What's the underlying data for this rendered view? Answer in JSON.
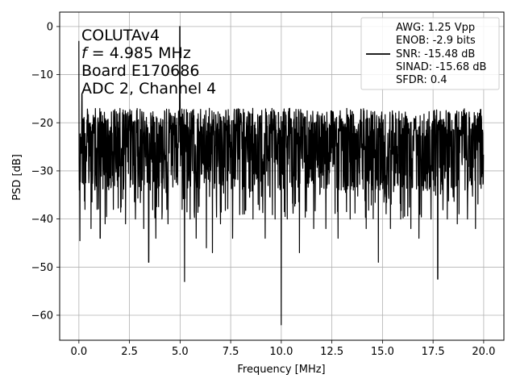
{
  "chart_data": {
    "type": "line",
    "title": "",
    "xlabel": "Frequency [MHz]",
    "ylabel": "PSD [dB]",
    "xlim": [
      -0.95,
      21.0
    ],
    "ylim": [
      -65.2,
      3.0
    ],
    "xticks": [
      0.0,
      2.5,
      5.0,
      7.5,
      10.0,
      12.5,
      15.0,
      17.5,
      20.0
    ],
    "xtick_labels": [
      "0.0",
      "2.5",
      "5.0",
      "7.5",
      "10.0",
      "12.5",
      "15.0",
      "17.5",
      "20.0"
    ],
    "yticks": [
      0,
      -10,
      -20,
      -30,
      -40,
      -50,
      -60
    ],
    "ytick_labels": [
      "0",
      "−10",
      "−20",
      "−30",
      "−40",
      "−50",
      "−60"
    ],
    "grid": true,
    "legend_position": "top-right",
    "annotation_lines": [
      "COLUTAv4",
      "f = 4.985 MHz",
      "Board E170686",
      "ADC 2, Channel 4"
    ],
    "legend_lines": [
      "AWG: 1.25 Vpp",
      "ENOB: -2.9 bits",
      "SNR: -15.48 dB",
      "SINAD: -15.68 dB",
      "SFDR: 0.4"
    ],
    "series": [
      {
        "color": "#000000",
        "description_of_shape": "noise floor fluctuating roughly between -18 and -35 dB across 0-20 MHz with a peak near 0 dB at 4.985 MHz",
        "x": [
          0.0,
          0.05,
          0.1,
          0.15,
          0.3,
          0.6,
          0.9,
          1.05,
          1.3,
          1.7,
          2.3,
          2.8,
          3.2,
          3.45,
          3.8,
          4.1,
          4.4,
          4.75,
          4.985,
          5.1,
          5.22,
          5.5,
          5.8,
          6.3,
          6.6,
          7.0,
          7.6,
          8.1,
          8.6,
          9.2,
          9.7,
          10.0,
          10.3,
          10.9,
          11.6,
          12.2,
          12.8,
          13.4,
          14.2,
          14.8,
          15.4,
          15.9,
          16.4,
          16.8,
          17.4,
          17.73,
          18.2,
          18.7,
          19.2,
          19.6,
          20.0
        ],
        "y": [
          -3.0,
          -44.5,
          -23.0,
          -14.0,
          -38.0,
          -42.0,
          -38.0,
          -44.0,
          -41.0,
          -38.0,
          -41.0,
          -40.0,
          -42.0,
          -49.0,
          -44.0,
          -40.0,
          -41.0,
          -18.0,
          0.0,
          -38.0,
          -53.0,
          -40.0,
          -44.0,
          -46.0,
          -47.0,
          -41.0,
          -44.0,
          -39.0,
          -40.0,
          -44.0,
          -40.0,
          -62.0,
          -40.0,
          -47.0,
          -42.0,
          -42.0,
          -44.0,
          -40.0,
          -42.0,
          -49.0,
          -42.0,
          -40.0,
          -42.0,
          -44.0,
          -40.0,
          -52.5,
          -40.0,
          -41.0,
          -40.0,
          -42.0,
          -34.0
        ]
      }
    ]
  }
}
